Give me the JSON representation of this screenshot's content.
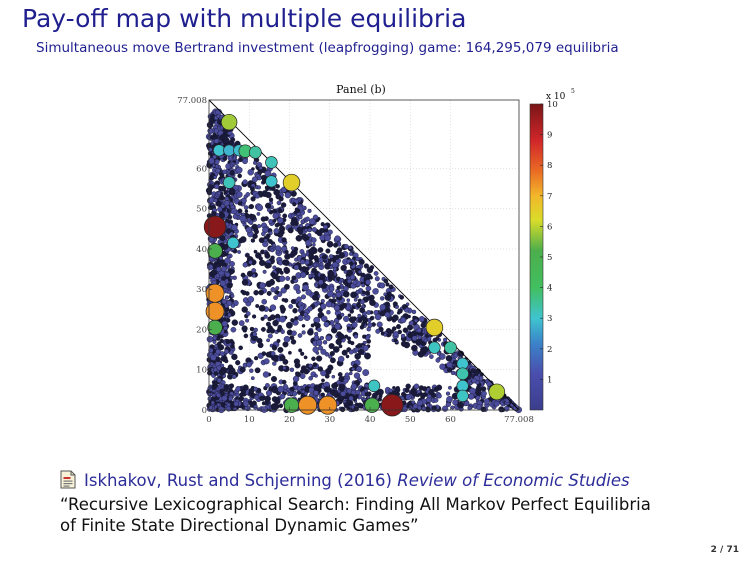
{
  "slide": {
    "title": "Pay-off map with multiple equilibria",
    "subtitle": "Simultaneous move Bertrand investment (leapfrogging) game: 164,295,079 equilibria",
    "page_number": "2 / 71"
  },
  "reference": {
    "authors": "Iskhakov, Rust and Schjerning (2016)",
    "journal": "Review of Economic Studies",
    "paper_title_line1": "“Recursive Lexicographical Search: Finding All Markov Perfect Equilibria",
    "paper_title_line2": "of Finite State Directional Dynamic Games”"
  },
  "chart_data": {
    "type": "scatter",
    "title": "Panel (b)",
    "xlim": [
      0,
      77.008
    ],
    "ylim": [
      0,
      77.008
    ],
    "x_ticks": [
      "0",
      "10",
      "20",
      "30",
      "40",
      "50",
      "60",
      "77.008"
    ],
    "y_ticks": [
      "0",
      "10",
      "20",
      "30",
      "40",
      "50",
      "60",
      "77.008"
    ],
    "colorbar": {
      "multiplier": "x 10",
      "exponent": "5",
      "ticks": [
        "1",
        "2",
        "3",
        "4",
        "5",
        "6",
        "7",
        "8",
        "9",
        "10"
      ],
      "range": [
        0,
        10
      ]
    },
    "frontier": [
      [
        0,
        77.008
      ],
      [
        77.008,
        0
      ]
    ],
    "highlighted_points": [
      {
        "x": 5,
        "y": 71.5,
        "c": 5.8
      },
      {
        "x": 2.5,
        "y": 64.5,
        "c": 3.0
      },
      {
        "x": 5,
        "y": 64.5,
        "c": 2.8
      },
      {
        "x": 7.5,
        "y": 64.5,
        "c": 2.9
      },
      {
        "x": 9,
        "y": 64.3,
        "c": 3.8
      },
      {
        "x": 11.5,
        "y": 64,
        "c": 3.4
      },
      {
        "x": 15.5,
        "y": 61.5,
        "c": 3.2
      },
      {
        "x": 20.5,
        "y": 56.5,
        "c": 6.5
      },
      {
        "x": 15.5,
        "y": 56.8,
        "c": 3.0
      },
      {
        "x": 5,
        "y": 56.5,
        "c": 3.2
      },
      {
        "x": 1.5,
        "y": 45.5,
        "c": 9.8
      },
      {
        "x": 6,
        "y": 41.5,
        "c": 3.0
      },
      {
        "x": 1.5,
        "y": 39.5,
        "c": 5.1
      },
      {
        "x": 1.5,
        "y": 29,
        "c": 7.4
      },
      {
        "x": 1.5,
        "y": 24.5,
        "c": 7.4
      },
      {
        "x": 1.5,
        "y": 20.5,
        "c": 5.1
      },
      {
        "x": 56,
        "y": 20.5,
        "c": 6.5
      },
      {
        "x": 56,
        "y": 15.5,
        "c": 3.1
      },
      {
        "x": 60,
        "y": 15.5,
        "c": 3.4
      },
      {
        "x": 63,
        "y": 11.5,
        "c": 3.0
      },
      {
        "x": 63,
        "y": 9,
        "c": 3.3
      },
      {
        "x": 63,
        "y": 6,
        "c": 3.0
      },
      {
        "x": 63,
        "y": 3.5,
        "c": 3.1
      },
      {
        "x": 71.5,
        "y": 4.5,
        "c": 5.9
      },
      {
        "x": 41,
        "y": 6,
        "c": 3.1
      },
      {
        "x": 20.5,
        "y": 1.2,
        "c": 5.1
      },
      {
        "x": 24.5,
        "y": 1.2,
        "c": 7.4
      },
      {
        "x": 29.5,
        "y": 1.2,
        "c": 7.4
      },
      {
        "x": 40.5,
        "y": 1.2,
        "c": 5.1
      },
      {
        "x": 45.5,
        "y": 1.2,
        "c": 9.8
      }
    ]
  }
}
